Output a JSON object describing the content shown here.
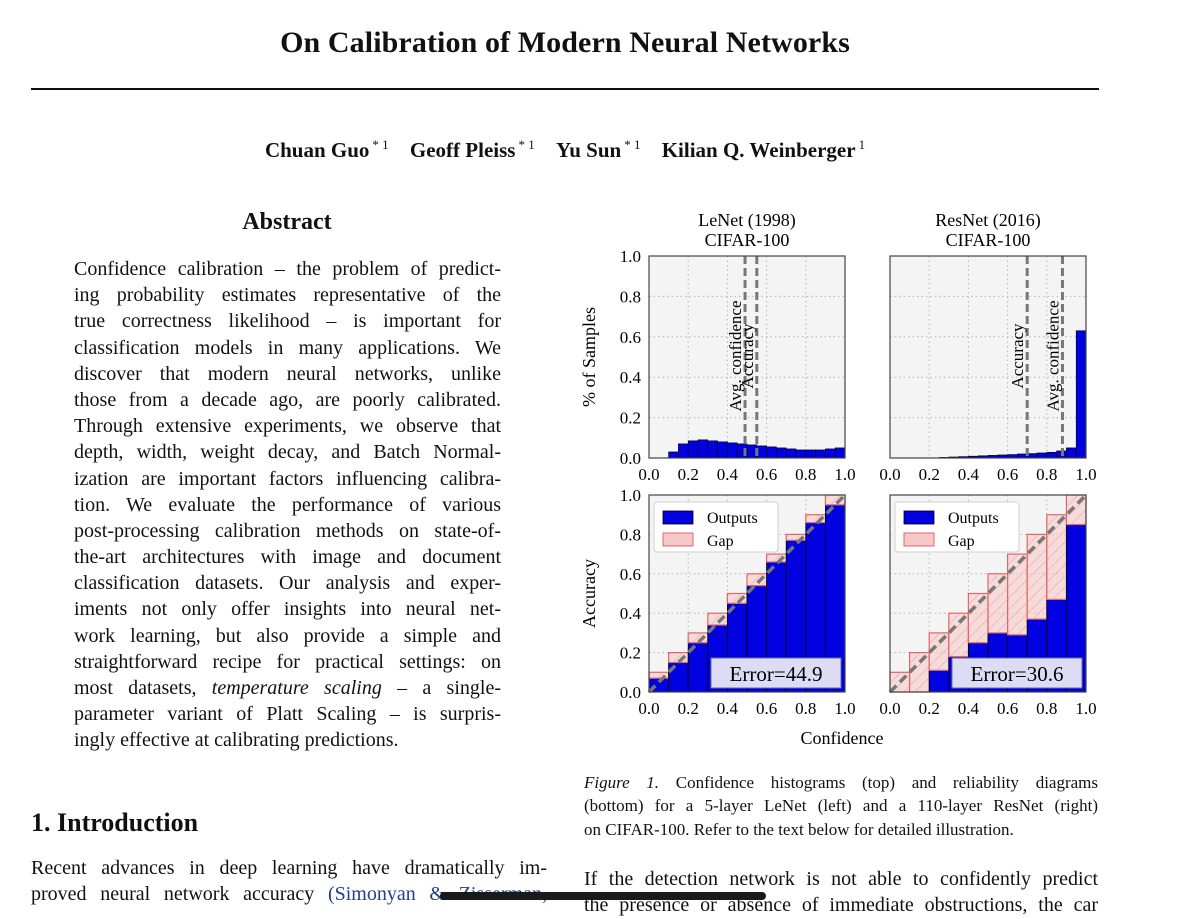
{
  "paper": {
    "title": "On Calibration of Modern Neural Networks",
    "authors": [
      {
        "name": "Chuan Guo",
        "affil": "* 1"
      },
      {
        "name": "Geoff Pleiss",
        "affil": "* 1"
      },
      {
        "name": "Yu Sun",
        "affil": "* 1"
      },
      {
        "name": "Kilian Q. Weinberger",
        "affil": "1"
      }
    ]
  },
  "abstract": {
    "heading": "Abstract",
    "lines": [
      "Confidence calibration – the problem of predict-",
      "ing probability estimates representative of the",
      "true correctness likelihood – is important for",
      "classification models in many applications. We",
      "discover that modern neural networks, unlike",
      "those from a decade ago, are poorly calibrated.",
      "Through extensive experiments, we observe that",
      "depth, width, weight decay, and Batch Normal-",
      "ization are important factors influencing calibra-",
      "tion. We evaluate the performance of various",
      "post-processing calibration methods on state-of-",
      "the-art architectures with image and document",
      "classification datasets. Our analysis and exper-",
      "iments not only offer insights into neural net-",
      "work learning, but also provide a simple and",
      "straightforward recipe for practical settings: on"
    ],
    "line17_pre": "most datasets, ",
    "line17_em": "temperature scaling",
    "line17_post": " – a single-",
    "line18": "parameter variant of Platt Scaling – is surpris-",
    "line19": "ingly effective at calibrating predictions."
  },
  "intro": {
    "heading": "1. Introduction",
    "line1": "Recent advances in deep learning have dramatically im-",
    "line2_pre": "proved neural network accuracy ",
    "line2_cite": "(Simonyan & Zisserman,"
  },
  "caption": {
    "label": "Figure 1.",
    "line1_rest": " Confidence histograms (top) and reliability diagrams",
    "line2": "(bottom) for a 5-layer LeNet (left) and a 110-layer ResNet (right)",
    "line3": "on CIFAR-100. Refer to the text below for detailed illustration."
  },
  "right_column": {
    "line1": "If the detection network is not able to confidently predict",
    "line2": "the presence or absence of immediate obstructions, the car"
  },
  "chart_data": [
    {
      "type": "bar",
      "title": "LeNet (1998)",
      "subtitle": "CIFAR-100",
      "ylabel": "% of Samples",
      "xlim": [
        0,
        1
      ],
      "ylim": [
        0,
        1
      ],
      "xticks": [
        "0.0",
        "0.2",
        "0.4",
        "0.6",
        "0.8",
        "1.0"
      ],
      "yticks": [
        "0.0",
        "0.2",
        "0.4",
        "0.6",
        "0.8",
        "1.0"
      ],
      "bin_width": 0.05,
      "bin_starts": [
        0.1,
        0.15,
        0.2,
        0.25,
        0.3,
        0.35,
        0.4,
        0.45,
        0.5,
        0.55,
        0.6,
        0.65,
        0.7,
        0.75,
        0.8,
        0.85,
        0.9,
        0.95
      ],
      "values": [
        0.03,
        0.07,
        0.085,
        0.09,
        0.085,
        0.08,
        0.075,
        0.07,
        0.065,
        0.06,
        0.055,
        0.05,
        0.045,
        0.04,
        0.04,
        0.04,
        0.045,
        0.05
      ],
      "lines": [
        {
          "label": "Avg. confidence",
          "x": 0.49
        },
        {
          "label": "Accuracy",
          "x": 0.55
        }
      ],
      "grid": true
    },
    {
      "type": "bar",
      "title": "ResNet (2016)",
      "subtitle": "CIFAR-100",
      "xlim": [
        0,
        1
      ],
      "ylim": [
        0,
        1
      ],
      "xticks": [
        "0.0",
        "0.2",
        "0.4",
        "0.6",
        "0.8",
        "1.0"
      ],
      "bin_width": 0.05,
      "bin_starts": [
        0.25,
        0.3,
        0.35,
        0.4,
        0.45,
        0.5,
        0.55,
        0.6,
        0.65,
        0.7,
        0.75,
        0.8,
        0.85,
        0.9,
        0.95
      ],
      "values": [
        0.003,
        0.005,
        0.007,
        0.009,
        0.011,
        0.013,
        0.015,
        0.017,
        0.02,
        0.022,
        0.025,
        0.028,
        0.035,
        0.05,
        0.63
      ],
      "lines": [
        {
          "label": "Accuracy",
          "x": 0.7
        },
        {
          "label": "Avg. confidence",
          "x": 0.88
        }
      ],
      "grid": true
    },
    {
      "type": "bar",
      "ylabel": "Accuracy",
      "xlim": [
        0,
        1
      ],
      "ylim": [
        0,
        1
      ],
      "xticks": [
        "0.0",
        "0.2",
        "0.4",
        "0.6",
        "0.8",
        "1.0"
      ],
      "yticks": [
        "0.0",
        "0.2",
        "0.4",
        "0.6",
        "0.8",
        "1.0"
      ],
      "bin_width": 0.1,
      "bin_starts": [
        0.0,
        0.1,
        0.2,
        0.3,
        0.4,
        0.5,
        0.6,
        0.7,
        0.8,
        0.9
      ],
      "outputs": [
        0.07,
        0.15,
        0.25,
        0.34,
        0.45,
        0.54,
        0.66,
        0.77,
        0.86,
        0.95
      ],
      "legend": [
        "Outputs",
        "Gap"
      ],
      "legend_position": "top-left",
      "annotation": "Error=44.9",
      "grid": true
    },
    {
      "type": "bar",
      "xlabel": "Confidence",
      "xlim": [
        0,
        1
      ],
      "ylim": [
        0,
        1
      ],
      "xticks": [
        "0.0",
        "0.2",
        "0.4",
        "0.6",
        "0.8",
        "1.0"
      ],
      "bin_width": 0.1,
      "bin_starts": [
        0.0,
        0.1,
        0.2,
        0.3,
        0.4,
        0.5,
        0.6,
        0.7,
        0.8,
        0.9
      ],
      "outputs": [
        0.0,
        0.0,
        0.11,
        0.18,
        0.25,
        0.3,
        0.29,
        0.37,
        0.47,
        0.85
      ],
      "legend": [
        "Outputs",
        "Gap"
      ],
      "legend_position": "top-left",
      "annotation": "Error=30.6",
      "grid": true
    }
  ],
  "colors": {
    "outputs": "#0000e0",
    "gap_fill": "#f7c6c6",
    "gap_edge": "#e06666",
    "diag": "#777777",
    "panel_bg": "#f4f4f4"
  }
}
